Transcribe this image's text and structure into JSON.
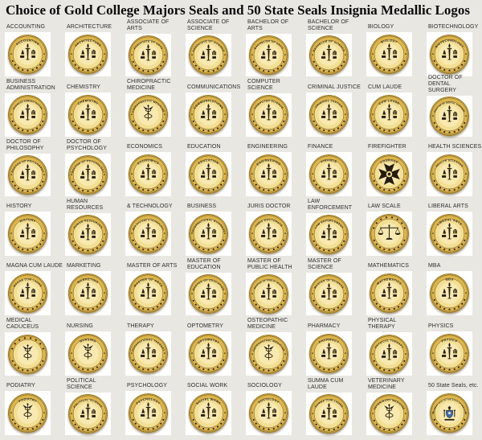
{
  "page": {
    "title": "Choice of Gold College Majors Seals and 50 State Seals Insignia Medallic Logos",
    "background": "#e9e7e2"
  },
  "colors": {
    "gold_edge": "#a9842a",
    "gold_rim": "#dcb54d",
    "gold_inner": "#f2df93",
    "gold_center": "#f7e9b0",
    "detail_dark": "#241c0e",
    "ring_dark": "#4a3a12",
    "thumb_bg": "#ffffff",
    "label_text": "#2e2e2e",
    "state_shield_blue": "#3a6bb5"
  },
  "seals": [
    {
      "label": "ACCOUNTING",
      "seal_text": "ACCOUNTING",
      "variant": "standard"
    },
    {
      "label": "ARCHITECTURE",
      "seal_text": "ARCHITECTURE",
      "variant": "standard"
    },
    {
      "label": "ASSOCIATE OF ARTS",
      "seal_text": "ASSOCIATE OF ARTS",
      "variant": "standard"
    },
    {
      "label": "ASSOCIATE OF SCIENCE",
      "seal_text": "ASSOCIATE OF SCIENCE",
      "variant": "standard"
    },
    {
      "label": "BACHELOR OF ARTS",
      "seal_text": "BACHELOR OF ARTS",
      "variant": "standard"
    },
    {
      "label": "BACHELOR OF SCIENCE",
      "seal_text": "BACHELOR OF SCIENCE",
      "variant": "standard"
    },
    {
      "label": "BIOLOGY",
      "seal_text": "BIOLOGY",
      "variant": "standard"
    },
    {
      "label": "BIOTECHNOLOGY",
      "seal_text": "BIOTECHNOLOGY",
      "variant": "standard"
    },
    {
      "label": "BUSINESS\nADMINISTRATION",
      "seal_text": "BUSINESS ADMINISTRATION",
      "variant": "standard"
    },
    {
      "label": "CHEMISTRY",
      "seal_text": "CHEMISTRY",
      "variant": "standard"
    },
    {
      "label": "CHIROPRACTIC\nMEDICINE",
      "seal_text": "CHIROPRACTIC MEDICINE",
      "variant": "caduceus"
    },
    {
      "label": "COMMUNICATIONS",
      "seal_text": "COMMUNICATIONS",
      "variant": "standard"
    },
    {
      "label": "COMPUTER SCIENCE",
      "seal_text": "COMPUTER SCIENCE",
      "variant": "standard"
    },
    {
      "label": "CRIMINAL JUSTICE",
      "seal_text": "CRIMINAL JUSTICE",
      "variant": "standard"
    },
    {
      "label": "CUM LAUDE",
      "seal_text": "CUM LAUDE",
      "variant": "standard"
    },
    {
      "label": "DOCTOR OF DENTAL\nSURGERY",
      "seal_text": "DOCTOR OF DENTAL SURGERY",
      "variant": "standard"
    },
    {
      "label": "DOCTOR OF\nPHILOSOPHY",
      "seal_text": "DOCTOR OF PHILOSOPHY",
      "variant": "standard"
    },
    {
      "label": "DOCTOR OF\nPSYCHOLOGY",
      "seal_text": "DOCTOR OF PSYCHOLOGY",
      "variant": "standard"
    },
    {
      "label": "ECONOMICS",
      "seal_text": "ECONOMICS",
      "variant": "standard"
    },
    {
      "label": "EDUCATION",
      "seal_text": "EDUCATION",
      "variant": "standard"
    },
    {
      "label": "ENGINEERING",
      "seal_text": "ENGINEERING",
      "variant": "standard"
    },
    {
      "label": "FINANCE",
      "seal_text": "FINANCE",
      "variant": "standard"
    },
    {
      "label": "FIREFIGHTER",
      "seal_text": "COURAGE",
      "variant": "cross",
      "cross_words": [
        "COURAGE",
        "PRIDE",
        "HONOR",
        "DEDICATION"
      ]
    },
    {
      "label": "HEALTH SCIENCES",
      "seal_text": "HEALTH SCIENCES",
      "variant": "standard"
    },
    {
      "label": "HISTORY",
      "seal_text": "HISTORY",
      "variant": "standard"
    },
    {
      "label": "HUMAN RESOURCES",
      "seal_text": "HUMAN RESOURCES",
      "variant": "standard"
    },
    {
      "label": "& TECHNOLOGY",
      "seal_text": "INFO SYSTEMS & TECHNOLOGY",
      "variant": "standard"
    },
    {
      "label": "BUSINESS",
      "seal_text": "INTERNATIONAL BUSINESS",
      "variant": "standard"
    },
    {
      "label": "JURIS DOCTOR",
      "seal_text": "JURIS DOCTORATE",
      "variant": "standard"
    },
    {
      "label": "LAW ENFORCEMENT",
      "seal_text": "LAW ENFORCEMENT",
      "variant": "standard"
    },
    {
      "label": "LAW SCALE",
      "seal_text": "",
      "variant": "scales"
    },
    {
      "label": "LIBERAL ARTS",
      "seal_text": "LIBERAL ARTS",
      "variant": "standard"
    },
    {
      "label": "MAGNA CUM LAUDE",
      "seal_text": "MAGNA CUM LAUDE",
      "variant": "standard"
    },
    {
      "label": "MARKETING",
      "seal_text": "MARKETING",
      "variant": "standard"
    },
    {
      "label": "MASTER OF ARTS",
      "seal_text": "MASTER OF ARTS",
      "variant": "standard"
    },
    {
      "label": "MASTER OF EDUCATION",
      "seal_text": "MASTER OF EDUCATION",
      "variant": "standard"
    },
    {
      "label": "MASTER OF\nPUBLIC HEALTH",
      "seal_text": "MASTER OF PUBLIC HEALTH",
      "variant": "standard"
    },
    {
      "label": "MASTER OF SCIENCE",
      "seal_text": "MASTER OF SCIENCE",
      "variant": "standard"
    },
    {
      "label": "MATHEMATICS",
      "seal_text": "MATHEMATICS",
      "variant": "standard"
    },
    {
      "label": "MBA",
      "seal_text": "MBA",
      "variant": "standard"
    },
    {
      "label": "MEDICAL CADUCEUS",
      "seal_text": "",
      "variant": "caduceus"
    },
    {
      "label": "NURSING",
      "seal_text": "NURSING",
      "variant": "caduceus"
    },
    {
      "label": "THERAPY",
      "seal_text": "OCCUPATIONAL THERAPY",
      "variant": "standard"
    },
    {
      "label": "OPTOMETRY",
      "seal_text": "OPTOMETRY",
      "variant": "standard"
    },
    {
      "label": "OSTEOPATHIC MEDICINE",
      "seal_text": "OSTEOPATHIC MEDICINE",
      "variant": "caduceus"
    },
    {
      "label": "PHARMACY",
      "seal_text": "PHARMACY",
      "variant": "standard"
    },
    {
      "label": "PHYSICAL THERAPY",
      "seal_text": "PHYSICAL THERAPY",
      "variant": "standard"
    },
    {
      "label": "PHYSICS",
      "seal_text": "PHYSICS",
      "variant": "standard"
    },
    {
      "label": "PODIATRY",
      "seal_text": "PODIATRY",
      "variant": "caduceus"
    },
    {
      "label": "POLITICAL SCIENCE",
      "seal_text": "POLITICAL SCIENCE",
      "variant": "standard"
    },
    {
      "label": "PSYCHOLOGY",
      "seal_text": "PSYCHOLOGY",
      "variant": "standard"
    },
    {
      "label": "SOCIAL WORK",
      "seal_text": "SOCIAL WORK",
      "variant": "standard"
    },
    {
      "label": "SOCIOLOGY",
      "seal_text": "SOCIOLOGY",
      "variant": "standard"
    },
    {
      "label": "SUMMA CUM LAUDE",
      "seal_text": "SUMMA CUM LAUDE",
      "variant": "standard"
    },
    {
      "label": "VETERINARY MEDICINE",
      "seal_text": "VETERINARY MEDICINE",
      "variant": "caduceus"
    },
    {
      "label": "50 State Seals, etc.",
      "seal_text": "THE GREAT SEAL OF THE STATE OF NEW YORK",
      "variant": "state"
    }
  ]
}
